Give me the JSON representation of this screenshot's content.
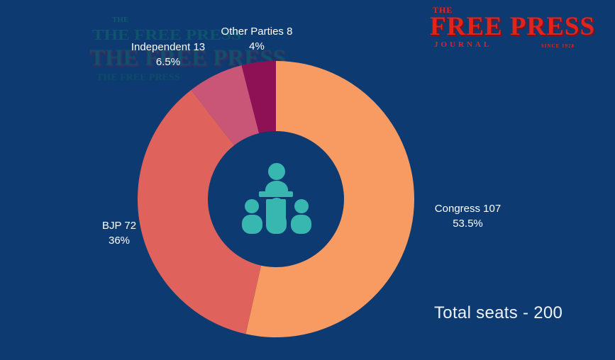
{
  "background_color": "#0d3a70",
  "text_color": "#ffffff",
  "logo": {
    "the": "THE",
    "name": "FREE PRESS",
    "journal": "JOURNAL",
    "since": "SINCE 1928",
    "color": "#e1251b"
  },
  "artifact": {
    "lines": [
      "THE",
      "THE FREE PRESS",
      "THE FREE PRESS",
      "THE FREE PRESS"
    ]
  },
  "total_seats_text": "Total seats - 200",
  "icon": {
    "name": "assembly-podium",
    "color": "#38b7b0"
  },
  "chart_data": {
    "type": "pie",
    "donut": true,
    "direction": "clockwise",
    "start_angle": "12 o'clock",
    "total_seats": 200,
    "inner_radius_ratio": 0.49,
    "segments": [
      {
        "label": "Congress",
        "seats": 107,
        "percent": 53.5,
        "color": "#f89b62",
        "label_line1": "Congress 107",
        "label_line2": "53.5%"
      },
      {
        "label": "BJP",
        "seats": 72,
        "percent": 36,
        "color": "#e0625c",
        "label_line1": "BJP 72",
        "label_line2": "36%"
      },
      {
        "label": "Independent",
        "seats": 13,
        "percent": 6.5,
        "color": "#c95577",
        "label_line1": "Independent 13",
        "label_line2": "6.5%"
      },
      {
        "label": "Other Parties",
        "seats": 8,
        "percent": 4,
        "color": "#8e1155",
        "label_line1": "Other Parties 8",
        "label_line2": "4%"
      }
    ]
  }
}
